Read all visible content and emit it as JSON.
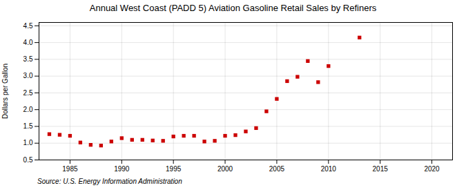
{
  "chart_data": {
    "type": "scatter",
    "title": "Annual West Coast (PADD 5) Aviation Gasoline Retail Sales by Refiners",
    "ylabel": "Dollars per Gallon",
    "annotations": [
      "Source: U.S. Energy Information Administration"
    ],
    "x": [
      1983,
      1984,
      1985,
      1986,
      1987,
      1988,
      1989,
      1990,
      1991,
      1992,
      1993,
      1994,
      1995,
      1996,
      1997,
      1998,
      1999,
      2000,
      2001,
      2002,
      2003,
      2004,
      2005,
      2006,
      2007,
      2008,
      2009,
      2010,
      2013
    ],
    "values": [
      1.27,
      1.25,
      1.22,
      1.02,
      0.95,
      0.93,
      1.05,
      1.15,
      1.1,
      1.1,
      1.08,
      1.07,
      1.2,
      1.22,
      1.22,
      1.05,
      1.07,
      1.22,
      1.24,
      1.35,
      1.45,
      1.95,
      2.32,
      2.85,
      2.98,
      3.45,
      2.82,
      3.3,
      4.15
    ],
    "color": "#cc0000",
    "marker": "square",
    "xlim": [
      1982,
      2022
    ],
    "ylim": [
      0.5,
      4.6
    ],
    "xticks": [
      1985,
      1990,
      1995,
      2000,
      2005,
      2010,
      2015,
      2020
    ],
    "yticks": [
      0.5,
      {
        "value": 1.0,
        "label": "1.0"
      },
      1.5,
      {
        "value": 2.0,
        "label": "2.0"
      },
      2.5,
      {
        "value": 3.0,
        "label": "3.0"
      },
      3.5,
      {
        "value": 4.0,
        "label": "4.0"
      },
      4.5
    ],
    "grid": true
  }
}
